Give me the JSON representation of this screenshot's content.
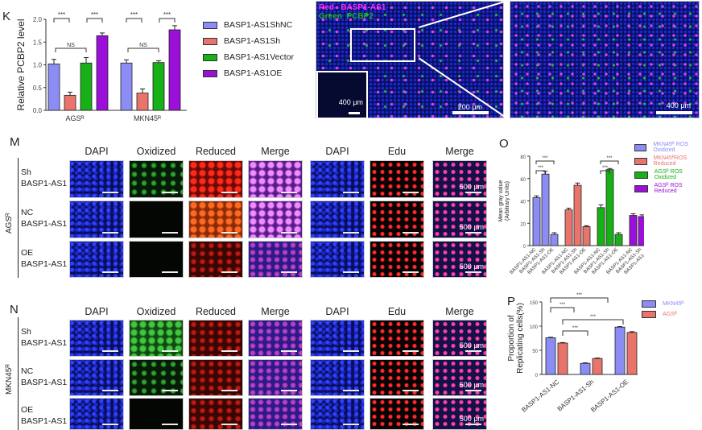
{
  "panels": {
    "K": "K",
    "M": "M",
    "N": "N",
    "O": "O",
    "P": "P"
  },
  "micro_top": {
    "red_key": "Red",
    "red_label": "BASP1-AS1",
    "green_key": "Green",
    "green_label": "PCBP2",
    "scale_inset": "400 μm",
    "scale_main": "200 μm",
    "scale_zoom": "400 μm"
  },
  "grid": {
    "headers": [
      "DAPI",
      "Oxidized",
      "Reduced",
      "Merge",
      "DAPI",
      "Edu",
      "Merge"
    ],
    "rows": [
      {
        "l1": "Sh",
        "l2": "BASP1-AS1"
      },
      {
        "l1": "NC",
        "l2": "BASP1-AS1"
      },
      {
        "l1": "OE",
        "l2": "BASP1-AS1"
      }
    ],
    "scale": "500 μm",
    "M_group": "AGSᴿ",
    "N_group": "MKN45ᴿ"
  },
  "chart_data": [
    {
      "type": "bar",
      "panel": "K",
      "ylabel": "Relative PCBP2 level",
      "ylim": [
        0,
        2.0
      ],
      "yticks": [
        "0.0",
        "0.5",
        "1.0",
        "1.5",
        "2.0"
      ],
      "categories": [
        "AGSᴿ",
        "MKN45ᴿ"
      ],
      "series": [
        {
          "name": "BASP1-AS1ShNC",
          "color": "#8c8cf5",
          "values": [
            1.02,
            1.04
          ],
          "err": [
            0.1,
            0.07
          ]
        },
        {
          "name": "BASP1-AS1Sh",
          "color": "#e8746c",
          "values": [
            0.33,
            0.38
          ],
          "err": [
            0.07,
            0.09
          ]
        },
        {
          "name": "BASP1-AS1Vector",
          "color": "#17b017",
          "values": [
            1.04,
            1.05
          ],
          "err": [
            0.12,
            0.04
          ]
        },
        {
          "name": "BASP1-AS1OE",
          "color": "#9b10d8",
          "values": [
            1.64,
            1.77
          ],
          "err": [
            0.06,
            0.09
          ]
        }
      ],
      "annotations": [
        "***",
        "***",
        "NS",
        "***",
        "***",
        "NS"
      ],
      "legend": "right"
    },
    {
      "type": "bar",
      "panel": "O",
      "ylabel": "Mean gray value (Arbitrary Units)",
      "ylabel1": "Mean gray value",
      "ylabel2": "(Arbitrary Units)",
      "ylim": [
        0,
        80
      ],
      "yticks": [
        "0",
        "20",
        "40",
        "60",
        "80"
      ],
      "categories": [
        "BASP1-AS1-NC",
        "BASP1-AS1-Sh",
        "BASP1-AS1-OE"
      ],
      "series": [
        {
          "name": "MKN45ᴿ ROS Oxidized",
          "color": "#8c8cf5",
          "values": [
            43,
            64,
            10
          ],
          "err": [
            1.5,
            2.5,
            1.5
          ]
        },
        {
          "name": "MKN45ᴿROS Reduced",
          "color": "#e8746c",
          "values": [
            32,
            54,
            17
          ],
          "err": [
            1.5,
            2,
            0.8
          ]
        },
        {
          "name": "AGSᴿ ROS Oxidized",
          "color": "#17b017",
          "values": [
            34,
            68,
            10
          ],
          "err": [
            2.5,
            1,
            1.5
          ]
        },
        {
          "name": "AGSᴿ ROS Reduced",
          "color": "#9b10d8",
          "values": [
            27,
            26,
            27
          ],
          "err": [
            1.5,
            1.5,
            1
          ]
        }
      ],
      "annotations": [
        "***",
        "***",
        "***",
        "***"
      ],
      "legend": "top-right"
    },
    {
      "type": "bar",
      "panel": "P",
      "ylabel": "Proportion of Replicating cells(%)",
      "ylabel1": "Proportion of",
      "ylabel2": "Replicating cells(%)",
      "ylim": [
        0,
        150
      ],
      "yticks": [
        "0",
        "50",
        "100",
        "150"
      ],
      "categories": [
        "BASP1-AS1-NC",
        "BASP1-AS1-Sh",
        "BASP1-AS1-OE"
      ],
      "series": [
        {
          "name": "MKN45ᴿ",
          "color": "#8c8cf5",
          "values": [
            76,
            23,
            98
          ],
          "err": [
            1,
            1,
            1
          ]
        },
        {
          "name": "AGSᴿ",
          "color": "#e8746c",
          "values": [
            65,
            33,
            87
          ],
          "err": [
            1,
            1,
            1.5
          ]
        }
      ],
      "annotations": [
        "***",
        "***",
        "***",
        "***"
      ],
      "legend": "top-right"
    }
  ]
}
